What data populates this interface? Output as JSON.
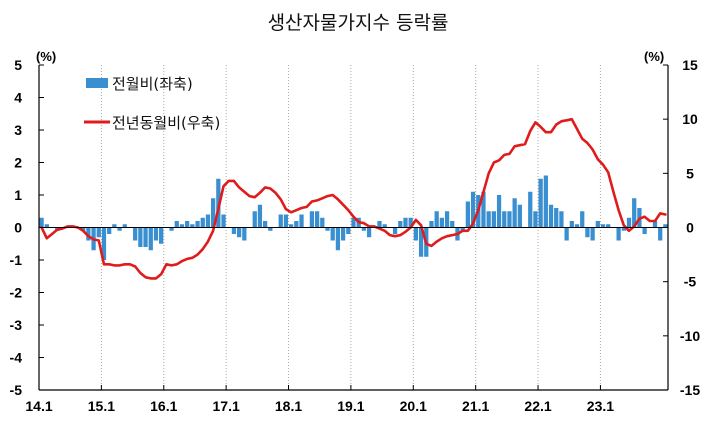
{
  "chart_data": {
    "type": "bar+line",
    "title": "생산자물가지수 등락률",
    "left_unit": "(%)",
    "right_unit": "(%)",
    "left_ylim": [
      -5,
      5
    ],
    "right_ylim": [
      -15,
      15
    ],
    "left_ticks": [
      "5",
      "4",
      "3",
      "2",
      "1",
      "0",
      "-1",
      "-2",
      "-3",
      "-4",
      "-5"
    ],
    "right_ticks": [
      "15",
      "10",
      "5",
      "0",
      "-5",
      "-10",
      "-15"
    ],
    "x_tick_labels": [
      "14.1",
      "15.1",
      "16.1",
      "17.1",
      "18.1",
      "19.1",
      "20.1",
      "21.1",
      "22.1",
      "23.1"
    ],
    "colors": {
      "bar": "#3a8fd0",
      "line": "#e01b1b",
      "grid": "#a8a8a8",
      "axis": "#000000"
    },
    "series": [
      {
        "name": "전월비(좌축)",
        "axis": "left",
        "type": "bar",
        "values": [
          0.3,
          0.1,
          0.0,
          -0.1,
          0.0,
          0.0,
          0.0,
          0.0,
          -0.1,
          -0.4,
          -0.7,
          -0.3,
          -1.0,
          -0.2,
          0.1,
          -0.1,
          0.1,
          0.0,
          -0.4,
          -0.6,
          -0.6,
          -0.7,
          -0.4,
          -0.5,
          0.0,
          -0.1,
          0.2,
          0.1,
          0.2,
          0.1,
          0.2,
          0.3,
          0.4,
          0.9,
          1.5,
          0.4,
          0.0,
          -0.2,
          -0.3,
          -0.4,
          0.0,
          0.5,
          0.7,
          0.2,
          -0.1,
          0.0,
          0.4,
          0.4,
          0.1,
          0.2,
          0.4,
          0.0,
          0.5,
          0.5,
          0.3,
          -0.1,
          -0.4,
          -0.7,
          -0.4,
          -0.2,
          0.3,
          0.3,
          -0.1,
          -0.3,
          0.0,
          0.2,
          0.1,
          0.0,
          -0.2,
          0.2,
          0.3,
          0.3,
          -0.4,
          -0.9,
          -0.9,
          0.2,
          0.5,
          0.3,
          0.5,
          0.2,
          -0.4,
          -0.1,
          0.8,
          1.1,
          1.0,
          1.1,
          0.5,
          0.5,
          1.0,
          0.5,
          0.5,
          0.9,
          0.7,
          0.0,
          1.1,
          0.5,
          1.5,
          1.6,
          0.7,
          0.6,
          0.5,
          -0.4,
          0.2,
          0.1,
          0.5,
          -0.3,
          -0.4,
          0.2,
          0.1,
          0.1,
          0.0,
          -0.4,
          -0.1,
          0.3,
          0.9,
          0.6,
          -0.2,
          0.0,
          0.2,
          -0.4,
          0.1
        ]
      },
      {
        "name": "전년동월비(우축)",
        "axis": "right",
        "type": "line",
        "values": [
          0.0,
          -1.0,
          -0.6,
          -0.2,
          -0.1,
          0.1,
          0.1,
          0.0,
          -0.3,
          -0.8,
          -1.1,
          -1.2,
          -3.4,
          -3.4,
          -3.5,
          -3.5,
          -3.4,
          -3.4,
          -3.6,
          -4.2,
          -4.6,
          -4.7,
          -4.7,
          -4.3,
          -3.4,
          -3.5,
          -3.4,
          -3.1,
          -2.9,
          -2.8,
          -2.5,
          -2.0,
          -1.3,
          -0.3,
          1.7,
          3.8,
          4.3,
          4.3,
          3.7,
          3.3,
          2.9,
          2.8,
          3.2,
          3.7,
          3.6,
          3.2,
          2.6,
          1.7,
          1.4,
          1.6,
          1.8,
          1.9,
          2.4,
          2.5,
          2.7,
          2.9,
          3.0,
          2.6,
          2.1,
          1.6,
          1.0,
          0.5,
          0.4,
          0.1,
          0.1,
          -0.1,
          -0.3,
          -0.7,
          -0.8,
          -0.7,
          -0.4,
          0.0,
          0.7,
          0.2,
          -1.5,
          -1.7,
          -1.3,
          -1.0,
          -0.8,
          -0.7,
          -0.6,
          -0.3,
          -0.3,
          0.4,
          1.6,
          3.3,
          5.0,
          6.0,
          6.2,
          6.7,
          6.8,
          7.5,
          7.6,
          7.7,
          8.9,
          9.7,
          9.3,
          8.8,
          8.8,
          9.5,
          9.8,
          9.9,
          10.0,
          9.1,
          8.2,
          7.8,
          7.2,
          6.3,
          5.8,
          5.1,
          3.3,
          1.6,
          0.2,
          -0.3,
          0.1,
          0.8,
          1.0,
          0.6,
          0.6,
          1.3,
          1.2
        ]
      }
    ],
    "legend_position": "top-left",
    "grid": "vertical dotted at each January"
  }
}
